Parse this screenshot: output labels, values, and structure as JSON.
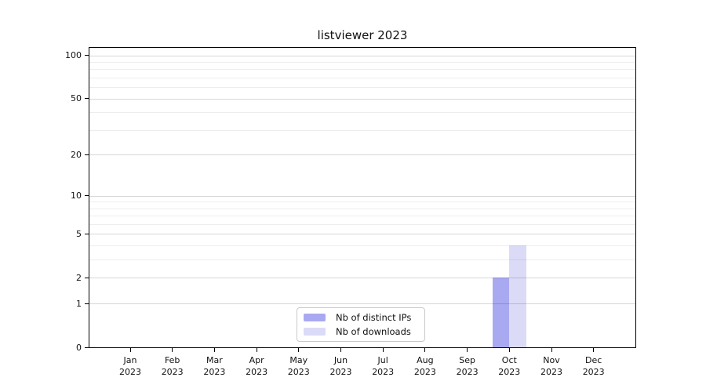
{
  "chart_data": {
    "type": "bar",
    "title": "listviewer 2023",
    "year_label": "2023",
    "categories": [
      "Jan",
      "Feb",
      "Mar",
      "Apr",
      "May",
      "Jun",
      "Jul",
      "Aug",
      "Sep",
      "Oct",
      "Nov",
      "Dec"
    ],
    "series": [
      {
        "name": "Nb of distinct IPs",
        "color": "#a9a9f1",
        "values": [
          0,
          0,
          0,
          0,
          0,
          0,
          0,
          0,
          0,
          2,
          0,
          0
        ]
      },
      {
        "name": "Nb of downloads",
        "color": "#dbdbf8",
        "values": [
          0,
          0,
          0,
          0,
          0,
          0,
          0,
          0,
          0,
          4,
          0,
          0
        ]
      }
    ],
    "y_axis": {
      "scale": "log1p",
      "major_ticks": [
        100,
        50,
        20,
        10,
        5,
        2,
        1,
        0
      ],
      "minor_gridlines": [
        3,
        4,
        6,
        7,
        8,
        9,
        30,
        40,
        60,
        70,
        80,
        90
      ],
      "range": [
        0,
        114
      ]
    },
    "x_axis": {
      "tick_label_format": "month over year",
      "range_note": "Jan 2023 - Dec 2023"
    },
    "legend": {
      "position": "bottom-center",
      "labels": [
        "Nb of distinct IPs",
        "Nb of downloads"
      ]
    },
    "grid": true,
    "colors": {
      "major_grid": "#d9d9d9",
      "minor_grid": "#ededed",
      "spine": "#000000",
      "text": "#111111",
      "background": "#ffffff"
    }
  }
}
